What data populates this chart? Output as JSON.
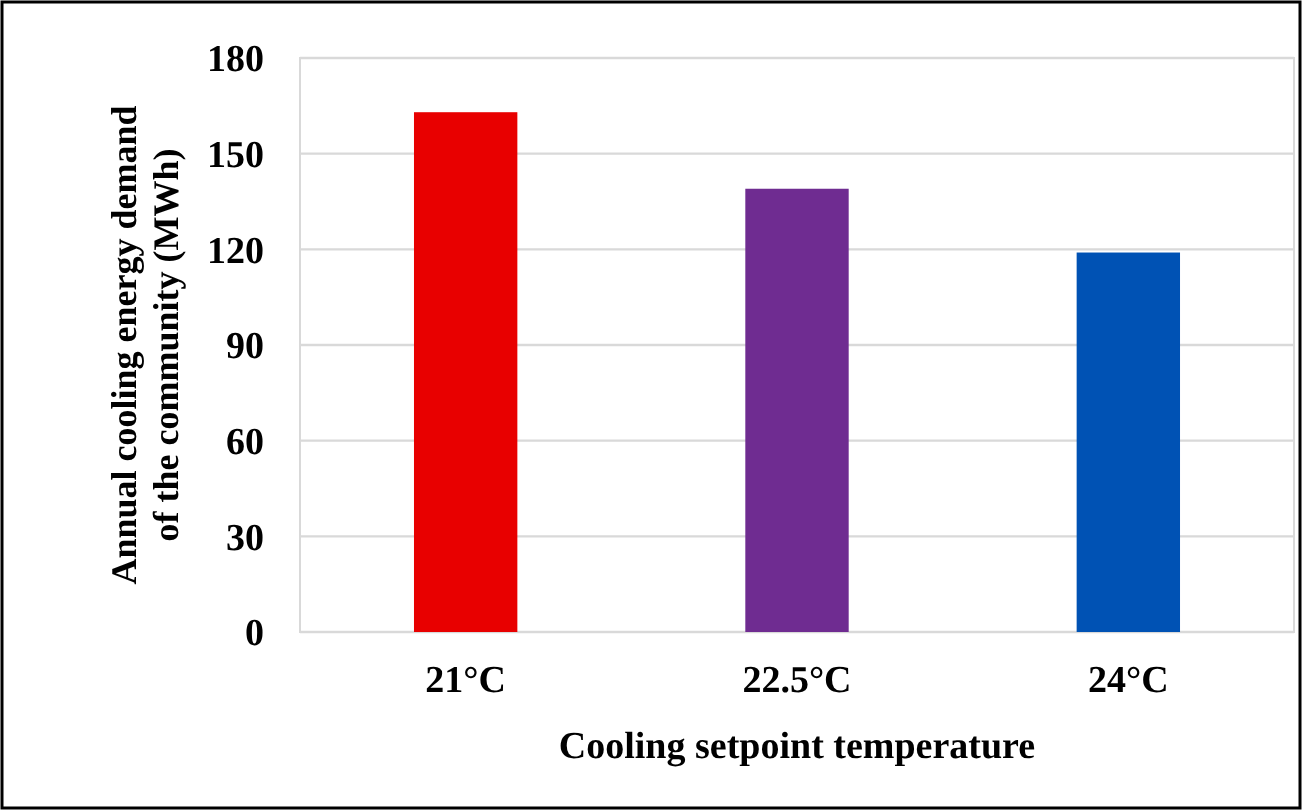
{
  "chart_data": {
    "type": "bar",
    "xlabel": "Cooling setpoint temperature",
    "ylabel": "Annual cooling energy demand of the community (MWh)",
    "categories": [
      "21°C",
      "22.5°C",
      "24°C"
    ],
    "values": [
      163,
      139,
      119
    ],
    "colors": [
      "#e80000",
      "#6f2c91",
      "#0052b4"
    ],
    "ylim": [
      0,
      180
    ],
    "yticks": [
      0,
      30,
      60,
      90,
      120,
      150,
      180
    ],
    "grid": "y"
  }
}
